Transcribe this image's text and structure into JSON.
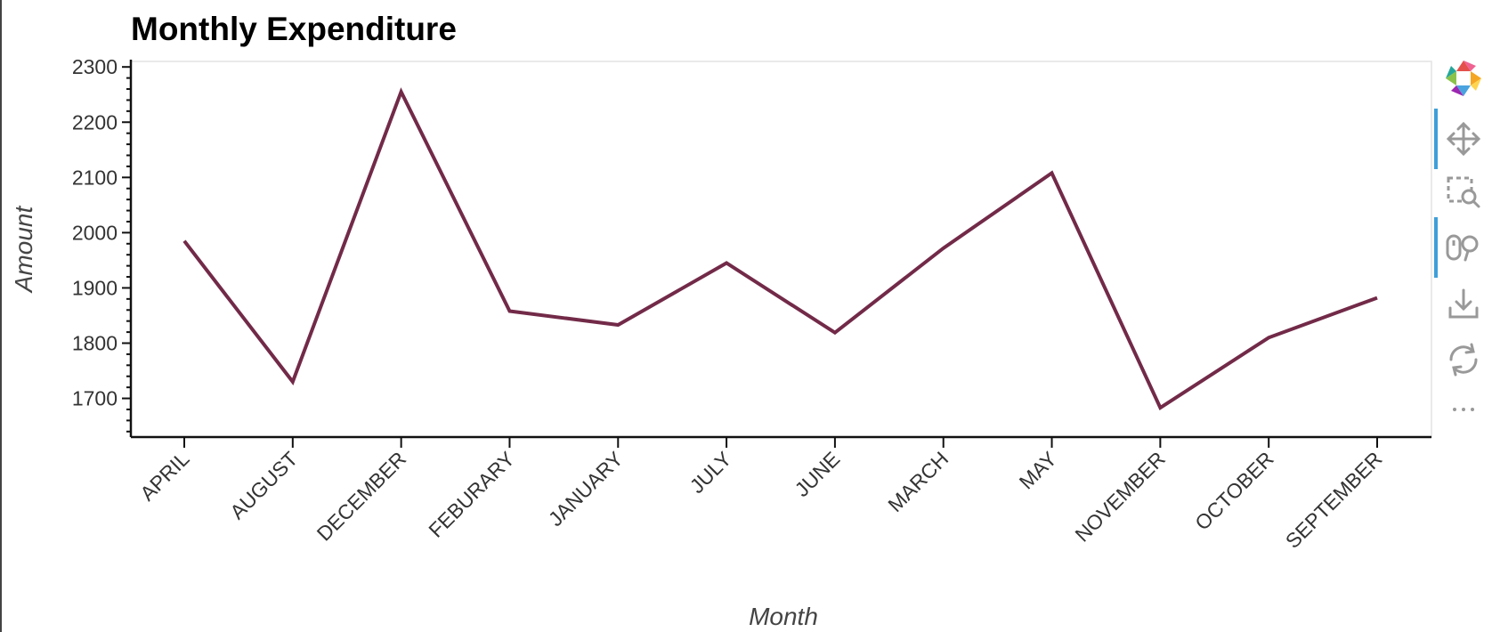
{
  "chart_data": {
    "type": "line",
    "title": "Monthly Expenditure",
    "xlabel": "Month",
    "ylabel": "Amount",
    "categories": [
      "APRIL",
      "AUGUST",
      "DECEMBER",
      "FEBURARY",
      "JANUARY",
      "JULY",
      "JUNE",
      "MARCH",
      "MAY",
      "NOVEMBER",
      "OCTOBER",
      "SEPTEMBER"
    ],
    "series": [
      {
        "values": [
          1985,
          1730,
          2255,
          1858,
          1833,
          1945,
          1819,
          1972,
          2108,
          1683,
          1810,
          1882
        ],
        "color": "#722a48"
      }
    ],
    "yticks": [
      1700,
      1800,
      1900,
      2000,
      2100,
      2200,
      2300
    ],
    "ylim": [
      1630,
      2310
    ],
    "grid": false,
    "legend": "none"
  },
  "toolbar": {
    "tools": [
      {
        "name": "bokeh-logo-icon",
        "active": false
      },
      {
        "name": "pan-icon",
        "active": true
      },
      {
        "name": "box-zoom-icon",
        "active": false
      },
      {
        "name": "wheel-zoom-icon",
        "active": true
      },
      {
        "name": "save-icon",
        "active": false
      },
      {
        "name": "reset-icon",
        "active": false
      },
      {
        "name": "more-icon",
        "active": false
      }
    ]
  }
}
